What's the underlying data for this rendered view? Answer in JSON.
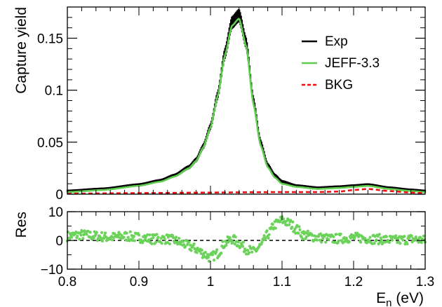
{
  "colors": {
    "exp": "#000000",
    "model": "#5fce4f",
    "bkg": "#ee1111",
    "residual": "#6bd25a",
    "axis": "#000000"
  },
  "chart_data": [
    {
      "type": "line",
      "title": "",
      "xlabel": "",
      "ylabel": "Capture yield",
      "xlim": [
        0.8,
        1.3
      ],
      "ylim": [
        0,
        0.18
      ],
      "grid": false,
      "legend": "top-right",
      "yticks": [
        "0",
        "0.05",
        "0.1",
        "0.15"
      ],
      "series": [
        {
          "name": "Exp",
          "style": "error-band",
          "x": [
            0.8,
            0.85,
            0.9,
            0.93,
            0.95,
            0.97,
            0.98,
            0.99,
            1.0,
            1.01,
            1.02,
            1.03,
            1.04,
            1.05,
            1.06,
            1.07,
            1.08,
            1.09,
            1.1,
            1.12,
            1.15,
            1.18,
            1.2,
            1.22,
            1.25,
            1.28,
            1.3
          ],
          "y": [
            0.003,
            0.005,
            0.009,
            0.013,
            0.018,
            0.026,
            0.033,
            0.046,
            0.065,
            0.095,
            0.135,
            0.165,
            0.172,
            0.145,
            0.09,
            0.05,
            0.028,
            0.018,
            0.012,
            0.008,
            0.006,
            0.007,
            0.008,
            0.009,
            0.006,
            0.004,
            0.003
          ]
        },
        {
          "name": "JEFF-3.3",
          "style": "line",
          "x": [
            0.8,
            0.85,
            0.9,
            0.93,
            0.95,
            0.97,
            0.98,
            0.99,
            1.0,
            1.01,
            1.02,
            1.03,
            1.04,
            1.05,
            1.06,
            1.07,
            1.08,
            1.09,
            1.1,
            1.12,
            1.15,
            1.18,
            1.2,
            1.22,
            1.25,
            1.28,
            1.3
          ],
          "y": [
            0.002,
            0.004,
            0.008,
            0.012,
            0.017,
            0.025,
            0.032,
            0.045,
            0.064,
            0.094,
            0.133,
            0.162,
            0.169,
            0.142,
            0.087,
            0.047,
            0.026,
            0.016,
            0.01,
            0.007,
            0.005,
            0.006,
            0.007,
            0.008,
            0.005,
            0.003,
            0.002
          ]
        },
        {
          "name": "BKG",
          "style": "dashed",
          "x": [
            0.8,
            0.9,
            1.0,
            1.05,
            1.1,
            1.15,
            1.18,
            1.2,
            1.22,
            1.25,
            1.28,
            1.3
          ],
          "y": [
            0.0005,
            0.001,
            0.0015,
            0.0018,
            0.002,
            0.002,
            0.0025,
            0.004,
            0.005,
            0.003,
            0.0015,
            0.001
          ]
        }
      ]
    },
    {
      "type": "scatter",
      "title": "",
      "ylabel": "Res",
      "xlabel": "E_n (eV)",
      "xlabel_main": "E",
      "xlabel_sub": "n",
      "xlabel_unit": " (eV)",
      "xlim": [
        0.8,
        1.3
      ],
      "ylim": [
        -10,
        10
      ],
      "grid": false,
      "xticks": [
        "0.8",
        "0.9",
        "1",
        "1.1",
        "1.2",
        "1.3"
      ],
      "yticks": [
        "-10",
        "0",
        "10"
      ],
      "reference_line": 0,
      "series": [
        {
          "name": "",
          "x": [
            0.8,
            0.82,
            0.84,
            0.86,
            0.88,
            0.9,
            0.92,
            0.94,
            0.95,
            0.96,
            0.97,
            0.98,
            0.99,
            1.0,
            1.01,
            1.02,
            1.03,
            1.04,
            1.05,
            1.06,
            1.07,
            1.08,
            1.09,
            1.1,
            1.11,
            1.12,
            1.13,
            1.14,
            1.15,
            1.17,
            1.2,
            1.23,
            1.26,
            1.28,
            1.3
          ],
          "y": [
            1.5,
            2.0,
            1.5,
            1.0,
            1.5,
            1.0,
            0.5,
            0.5,
            0.0,
            -1.0,
            -2.0,
            -3.0,
            -4.5,
            -6.0,
            -4.5,
            -1.0,
            0.5,
            -1.0,
            -3.0,
            -4.0,
            -2.0,
            2.0,
            5.5,
            7.0,
            6.0,
            4.0,
            2.0,
            1.5,
            1.0,
            0.5,
            1.0,
            0.5,
            0.0,
            0.5,
            0.0
          ]
        }
      ]
    }
  ],
  "legend": [
    {
      "label": "Exp",
      "style": "solid",
      "color_key": "exp"
    },
    {
      "label": "JEFF-3.3",
      "style": "solid",
      "color_key": "model"
    },
    {
      "label": "BKG",
      "style": "dashed",
      "color_key": "bkg"
    }
  ]
}
